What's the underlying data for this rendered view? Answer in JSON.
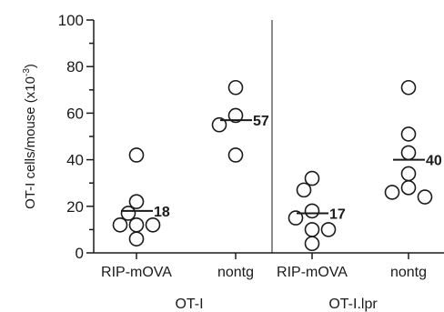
{
  "chart_data": {
    "type": "scatter",
    "ylabel": "OT-I cells/mouse (x10",
    "ylabel_exp": "-3",
    "ylabel_end": ")",
    "ylim": [
      0,
      100
    ],
    "yticks": [
      "0",
      "20",
      "40",
      "60",
      "80",
      "100"
    ],
    "groups": [
      {
        "name": "OT-I",
        "categories": [
          {
            "label": "RIP-mOVA",
            "values": [
              42,
              22,
              17,
              12,
              12,
              12,
              6
            ],
            "mean": 18,
            "mean_label": "18"
          },
          {
            "label": "nontg",
            "values": [
              71,
              59,
              55,
              42
            ],
            "mean": 57,
            "mean_label": "57"
          }
        ]
      },
      {
        "name": "OT-I.lpr",
        "categories": [
          {
            "label": "RIP-mOVA",
            "values": [
              32,
              27,
              18,
              15,
              10,
              10,
              4
            ],
            "mean": 17,
            "mean_label": "17"
          },
          {
            "label": "nontg",
            "values": [
              71,
              51,
              43,
              34,
              28,
              24,
              26
            ],
            "mean": 40,
            "mean_label": "40"
          }
        ]
      }
    ]
  }
}
